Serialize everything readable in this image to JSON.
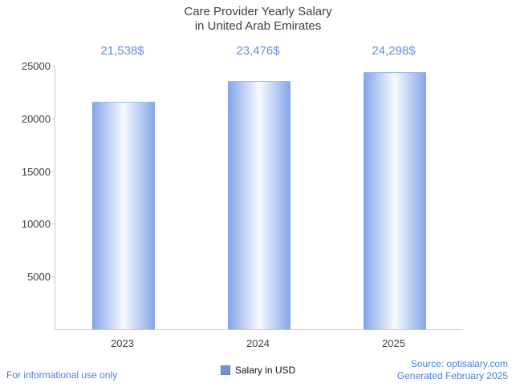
{
  "title": {
    "line1": "Care Provider Yearly Salary",
    "line2": "in United Arab Emirates"
  },
  "chart_data": {
    "type": "bar",
    "title": "Care Provider Yearly Salary in United Arab Emirates",
    "categories": [
      "2023",
      "2024",
      "2025"
    ],
    "values": [
      21538,
      23476,
      24298
    ],
    "value_labels": [
      "21,538$",
      "23,476$",
      "24,298$"
    ],
    "xlabel": "",
    "ylabel": "",
    "ylim": [
      0,
      25000
    ],
    "yticks": [
      5000,
      10000,
      15000,
      20000,
      25000
    ],
    "grid": false,
    "legend_position": "bottom",
    "legend": "Salary in USD",
    "bar_edge_color": "#84a5e8",
    "bar_center_color": "#f7faff",
    "value_label_color": "#5e8fe0"
  },
  "legend": {
    "label": "Salary in USD",
    "swatch_color": "#7594d6"
  },
  "footer": {
    "left": "For informational use only",
    "source": "Source: optisalary.com",
    "generated": "Generated February 2025",
    "text_color": "#4b7fd9"
  }
}
